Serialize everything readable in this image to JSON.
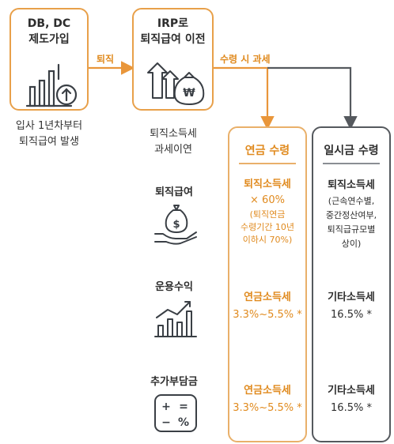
{
  "colors": {
    "orange": "#e9963a",
    "orange_text": "#e08a1e",
    "gray": "#55595e",
    "text": "#2b2b2b"
  },
  "box_db": {
    "line1": "DB, DC",
    "line2": "제도가입",
    "icon": "bar-chart-with-up-arrow-icon"
  },
  "arrow_retire": "퇴직",
  "caption_db": {
    "line1": "입사 1년차부터",
    "line2": "퇴직급여 발생"
  },
  "box_irp": {
    "line1": "IRP로",
    "line2": "퇴직급여 이전",
    "icon": "growth-arrows-money-bag-icon"
  },
  "caption_irp": {
    "line1": "퇴직소득세",
    "line2": "과세이연"
  },
  "arrow_receive": "수령 시 과세",
  "rows": [
    {
      "label": "퇴직급여",
      "icon": "hand-money-bag-icon"
    },
    {
      "label": "운용수익",
      "icon": "bar-chart-growth-icon"
    },
    {
      "label": "추가부담금",
      "icon": "calculator-icon"
    }
  ],
  "pension": {
    "header": "연금 수령",
    "r1": {
      "l1": "퇴직소득세",
      "l2": "× 60%",
      "l3": "(퇴직연금",
      "l4": "수령기간 10년",
      "l5": "이하시 70%)"
    },
    "r2": {
      "l1": "연금소득세",
      "l2": "3.3%~5.5% *"
    },
    "r3": {
      "l1": "연금소득세",
      "l2": "3.3%~5.5% *"
    }
  },
  "lump": {
    "header": "일시금 수령",
    "r1": {
      "l1": "퇴직소득세",
      "l2": "(근속연수별,",
      "l3": "중간정산여부,",
      "l4": "퇴직급규모별",
      "l5": "상이)"
    },
    "r2": {
      "l1": "기타소득세",
      "l2": "16.5% *"
    },
    "r3": {
      "l1": "기타소득세",
      "l2": "16.5% *"
    }
  }
}
